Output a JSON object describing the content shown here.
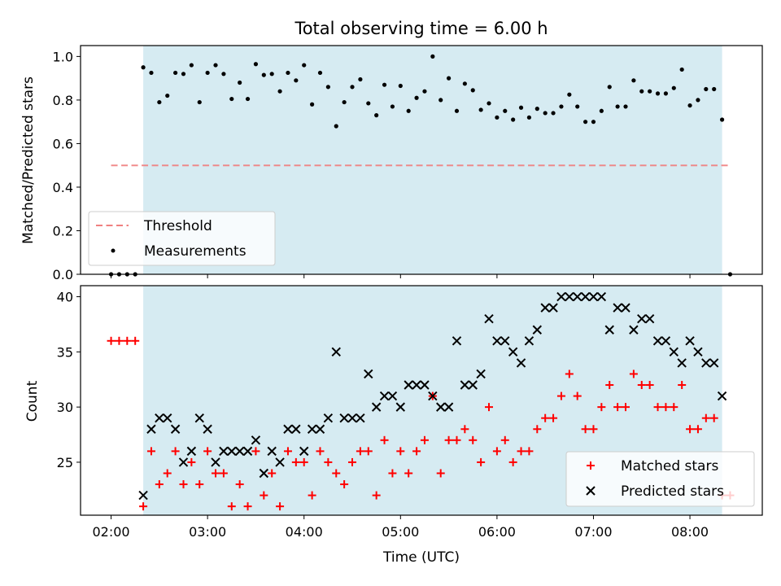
{
  "figure": {
    "title": "Total observing time = 6.00 h"
  },
  "colors": {
    "shade": "#add8e6",
    "threshold": "#f08080",
    "measurement": "#000000",
    "matched": "#ff0000",
    "predicted": "#000000"
  },
  "chart_data": [
    {
      "type": "scatter",
      "ylabel": "Matched/Predicted stars",
      "ylim": [
        0,
        1.05
      ],
      "yticks": [
        "0.0",
        "0.2",
        "0.4",
        "0.6",
        "0.8",
        "1.0"
      ],
      "xlim": [
        "01:41",
        "08:45"
      ],
      "observing_window": [
        "02:20",
        "08:20"
      ],
      "threshold": {
        "name": "Threshold",
        "value": 0.5,
        "x": [
          "02:00",
          "08:25"
        ]
      },
      "legend_position": "lower-left",
      "series": [
        {
          "name": "Measurements",
          "x": [
            "02:00",
            "02:05",
            "02:10",
            "02:15",
            "02:20",
            "02:25",
            "02:30",
            "02:35",
            "02:40",
            "02:45",
            "02:50",
            "02:55",
            "03:00",
            "03:05",
            "03:10",
            "03:15",
            "03:20",
            "03:25",
            "03:30",
            "03:35",
            "03:40",
            "03:45",
            "03:50",
            "03:55",
            "04:00",
            "04:05",
            "04:10",
            "04:15",
            "04:20",
            "04:25",
            "04:30",
            "04:35",
            "04:40",
            "04:45",
            "04:50",
            "04:55",
            "05:00",
            "05:05",
            "05:10",
            "05:15",
            "05:20",
            "05:25",
            "05:30",
            "05:35",
            "05:40",
            "05:45",
            "05:50",
            "05:55",
            "06:00",
            "06:05",
            "06:10",
            "06:15",
            "06:20",
            "06:25",
            "06:30",
            "06:35",
            "06:40",
            "06:45",
            "06:50",
            "06:55",
            "07:00",
            "07:05",
            "07:10",
            "07:15",
            "07:20",
            "07:25",
            "07:30",
            "07:35",
            "07:40",
            "07:45",
            "07:50",
            "07:55",
            "08:00",
            "08:05",
            "08:10",
            "08:15",
            "08:20",
            "08:25"
          ],
          "y": [
            0,
            0,
            0,
            0,
            0.95,
            0.925,
            0.79,
            0.82,
            0.925,
            0.92,
            0.96,
            0.79,
            0.925,
            0.96,
            0.92,
            0.805,
            0.88,
            0.805,
            0.965,
            0.915,
            0.92,
            0.84,
            0.925,
            0.89,
            0.96,
            0.78,
            0.925,
            0.86,
            0.68,
            0.79,
            0.86,
            0.895,
            0.785,
            0.73,
            0.87,
            0.77,
            0.865,
            0.75,
            0.81,
            0.84,
            1.0,
            0.8,
            0.9,
            0.75,
            0.875,
            0.845,
            0.755,
            0.785,
            0.72,
            0.75,
            0.71,
            0.765,
            0.72,
            0.76,
            0.74,
            0.74,
            0.77,
            0.825,
            0.77,
            0.7,
            0.7,
            0.75,
            0.86,
            0.77,
            0.77,
            0.89,
            0.84,
            0.84,
            0.83,
            0.83,
            0.855,
            0.94,
            0.775,
            0.8,
            0.85,
            0.85,
            0.71,
            0
          ]
        }
      ]
    },
    {
      "type": "scatter",
      "xlabel": "Time (UTC)",
      "ylabel": "Count",
      "ylim": [
        20.2,
        41.0
      ],
      "yticks": [
        "25",
        "30",
        "35",
        "40"
      ],
      "xlim": [
        "01:41",
        "08:45"
      ],
      "xticks": [
        "02:00",
        "03:00",
        "04:00",
        "05:00",
        "06:00",
        "07:00",
        "08:00"
      ],
      "observing_window": [
        "02:20",
        "08:20"
      ],
      "legend_position": "lower-right",
      "series": [
        {
          "name": "Matched stars",
          "x": [
            "02:00",
            "02:05",
            "02:10",
            "02:15",
            "02:20",
            "02:25",
            "02:30",
            "02:35",
            "02:40",
            "02:45",
            "02:50",
            "02:55",
            "03:00",
            "03:05",
            "03:10",
            "03:15",
            "03:20",
            "03:25",
            "03:30",
            "03:35",
            "03:40",
            "03:45",
            "03:50",
            "03:55",
            "04:00",
            "04:05",
            "04:10",
            "04:15",
            "04:20",
            "04:25",
            "04:30",
            "04:35",
            "04:40",
            "04:45",
            "04:50",
            "04:55",
            "05:00",
            "05:05",
            "05:10",
            "05:15",
            "05:20",
            "05:25",
            "05:30",
            "05:35",
            "05:40",
            "05:45",
            "05:50",
            "05:55",
            "06:00",
            "06:05",
            "06:10",
            "06:15",
            "06:20",
            "06:25",
            "06:30",
            "06:35",
            "06:40",
            "06:45",
            "06:50",
            "06:55",
            "07:00",
            "07:05",
            "07:10",
            "07:15",
            "07:20",
            "07:25",
            "07:30",
            "07:35",
            "07:40",
            "07:45",
            "07:50",
            "07:55",
            "08:00",
            "08:05",
            "08:10",
            "08:15",
            "08:20",
            "08:25"
          ],
          "y": [
            36,
            36,
            36,
            36,
            21,
            26,
            23,
            24,
            26,
            23,
            25,
            23,
            26,
            24,
            24,
            21,
            23,
            21,
            26,
            22,
            24,
            21,
            26,
            25,
            25,
            22,
            26,
            25,
            24,
            23,
            25,
            26,
            26,
            22,
            27,
            24,
            26,
            24,
            26,
            27,
            31,
            24,
            27,
            27,
            28,
            27,
            25,
            30,
            26,
            27,
            25,
            26,
            26,
            28,
            29,
            29,
            31,
            33,
            31,
            28,
            28,
            30,
            32,
            30,
            30,
            33,
            32,
            32,
            30,
            30,
            30,
            32,
            28,
            28,
            29,
            29,
            22,
            22
          ]
        },
        {
          "name": "Predicted stars",
          "x": [
            "02:20",
            "02:25",
            "02:30",
            "02:35",
            "02:40",
            "02:45",
            "02:50",
            "02:55",
            "03:00",
            "03:05",
            "03:10",
            "03:15",
            "03:20",
            "03:25",
            "03:30",
            "03:35",
            "03:40",
            "03:45",
            "03:50",
            "03:55",
            "04:00",
            "04:05",
            "04:10",
            "04:15",
            "04:20",
            "04:25",
            "04:30",
            "04:35",
            "04:40",
            "04:45",
            "04:50",
            "04:55",
            "05:00",
            "05:05",
            "05:10",
            "05:15",
            "05:20",
            "05:25",
            "05:30",
            "05:35",
            "05:40",
            "05:45",
            "05:50",
            "05:55",
            "06:00",
            "06:05",
            "06:10",
            "06:15",
            "06:20",
            "06:25",
            "06:30",
            "06:35",
            "06:40",
            "06:45",
            "06:50",
            "06:55",
            "07:00",
            "07:05",
            "07:10",
            "07:15",
            "07:20",
            "07:25",
            "07:30",
            "07:35",
            "07:40",
            "07:45",
            "07:50",
            "07:55",
            "08:00",
            "08:05",
            "08:10",
            "08:15",
            "08:20"
          ],
          "y": [
            22,
            28,
            29,
            29,
            28,
            25,
            26,
            29,
            28,
            25,
            26,
            26,
            26,
            26,
            27,
            24,
            26,
            25,
            28,
            28,
            26,
            28,
            28,
            29,
            35,
            29,
            29,
            29,
            33,
            30,
            31,
            31,
            30,
            32,
            32,
            32,
            31,
            30,
            30,
            36,
            32,
            32,
            33,
            38,
            36,
            36,
            35,
            34,
            36,
            37,
            39,
            39,
            40,
            40,
            40,
            40,
            40,
            40,
            37,
            39,
            39,
            37,
            38,
            38,
            36,
            36,
            35,
            34,
            36,
            35,
            34,
            34,
            31
          ]
        }
      ]
    }
  ]
}
